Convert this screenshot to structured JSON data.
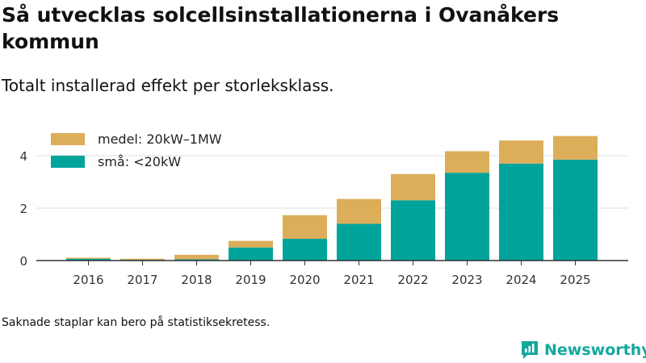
{
  "chart_data": {
    "type": "bar",
    "stacked": true,
    "title": "Så utvecklas solcellsinstallationerna i Ovanåkers kommun",
    "subtitle": "Totalt installerad effekt per storleksklass.",
    "categories": [
      "2016",
      "2017",
      "2018",
      "2019",
      "2020",
      "2021",
      "2022",
      "2023",
      "2024",
      "2025"
    ],
    "series": [
      {
        "name": "små: <20kW",
        "color": "#00a49a",
        "values": [
          0.07,
          0.03,
          0.05,
          0.5,
          0.83,
          1.4,
          2.3,
          3.35,
          3.7,
          3.85
        ]
      },
      {
        "name": "medel: 20kW–1MW",
        "color": "#dcae5a",
        "values": [
          0.04,
          0.04,
          0.17,
          0.25,
          0.9,
          0.95,
          1.0,
          0.82,
          0.88,
          0.9
        ]
      }
    ],
    "yticks": [
      0,
      2,
      4
    ],
    "ylim": [
      0,
      5
    ],
    "xlabel": "",
    "ylabel": "",
    "legend": "top-left",
    "grid": true
  },
  "footnote": "Saknade staplar kan bero på statistiksekretess.",
  "brand": {
    "name": "Newsworthy",
    "color": "#13a89e"
  }
}
